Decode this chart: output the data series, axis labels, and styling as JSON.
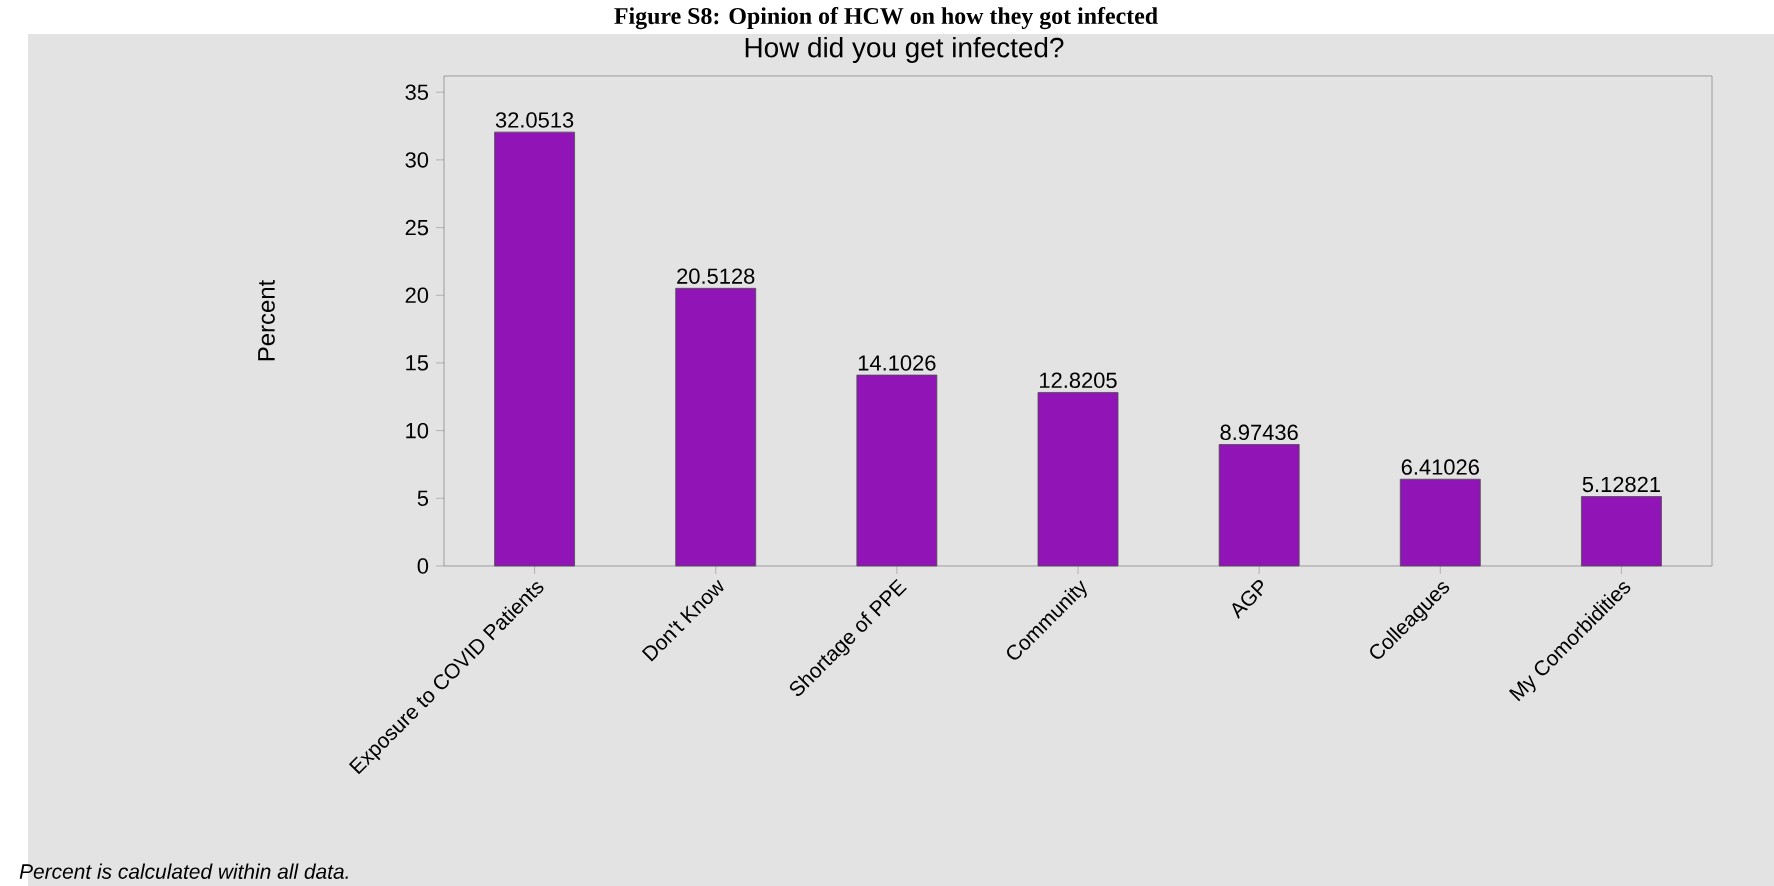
{
  "chart_data": {
    "type": "bar",
    "title": "Figure S8: Opinion of HCW on how they got infected",
    "subtitle": "How did you get infected?",
    "ylabel": "Percent",
    "annotations": [
      "*Percent is calculated within all data.*"
    ],
    "categories": [
      "Exposure to COVID Patients",
      "Don't Know",
      "Shortage of PPE",
      "Community",
      "AGP",
      "Colleagues",
      "My Comorbidities"
    ],
    "values": [
      32.0513,
      20.5128,
      14.1026,
      12.8205,
      8.97436,
      6.41026,
      5.12821
    ],
    "color": "#9114b7",
    "data_labels": true,
    "ylim": [
      0,
      36.2
    ],
    "yticks": [
      0,
      5,
      10,
      15,
      20,
      25,
      30,
      35
    ],
    "grid": false
  }
}
